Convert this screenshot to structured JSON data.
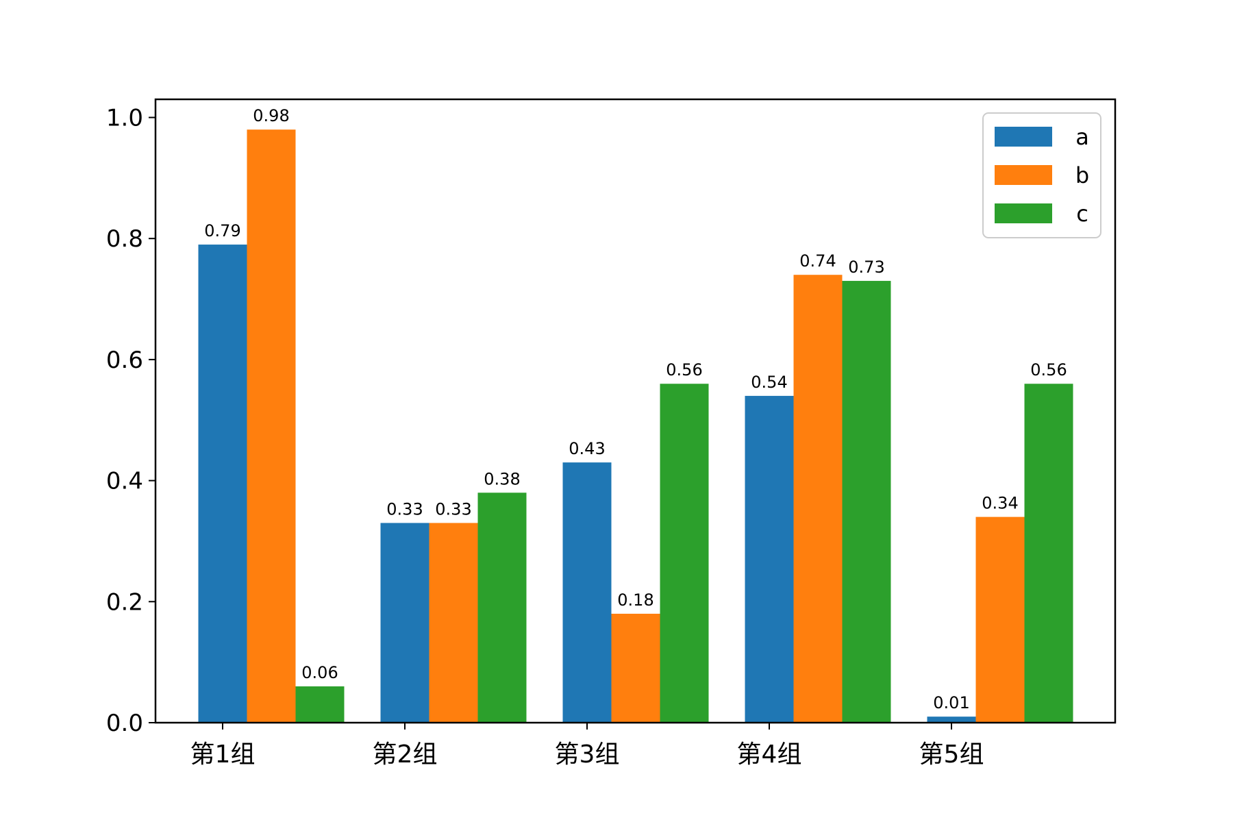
{
  "chart_data": {
    "type": "bar",
    "categories": [
      "第1组",
      "第2组",
      "第3组",
      "第4组",
      "第5组"
    ],
    "series": [
      {
        "name": "a",
        "color": "#1f77b4",
        "values": [
          0.79,
          0.33,
          0.43,
          0.54,
          0.01
        ]
      },
      {
        "name": "b",
        "color": "#ff7f0e",
        "values": [
          0.98,
          0.33,
          0.18,
          0.74,
          0.34
        ]
      },
      {
        "name": "c",
        "color": "#2ca02c",
        "values": [
          0.06,
          0.38,
          0.56,
          0.73,
          0.56
        ]
      }
    ],
    "data_labels": [
      [
        "0.79",
        "0.33",
        "0.43",
        "0.54",
        "0.01"
      ],
      [
        "0.98",
        "0.33",
        "0.18",
        "0.74",
        "0.34"
      ],
      [
        "0.06",
        "0.38",
        "0.56",
        "0.73",
        "0.56"
      ]
    ],
    "yticks": [
      "0.0",
      "0.2",
      "0.4",
      "0.6",
      "0.8",
      "1.0"
    ],
    "ylim": [
      0,
      1.03
    ],
    "grid": false,
    "legend_position": "top-right",
    "title": "",
    "xlabel": "",
    "ylabel": ""
  }
}
